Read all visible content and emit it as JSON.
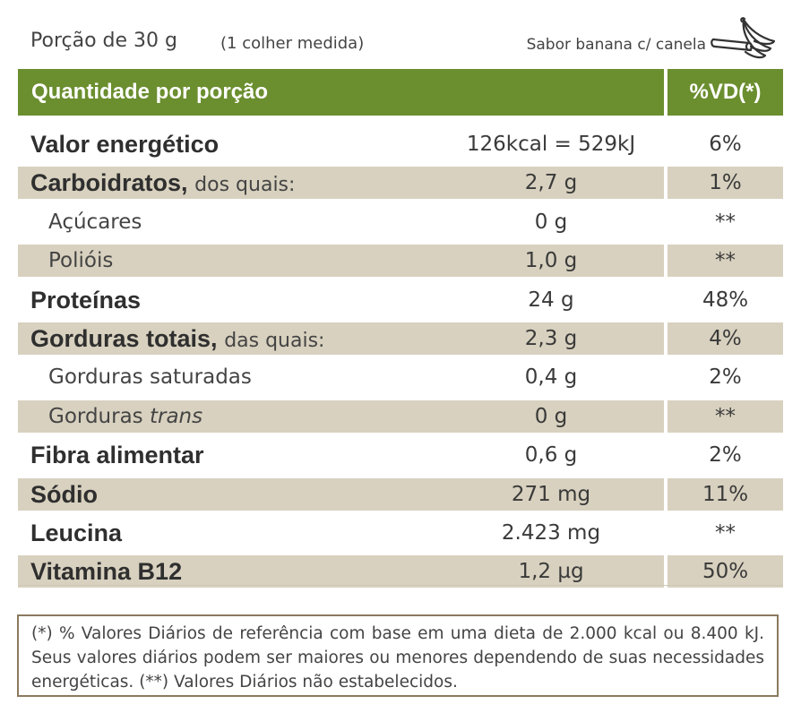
{
  "header": {
    "portion": "Porção de 30 g",
    "measure": "(1 colher medida)",
    "flavor": "Sabor banana c/ canela",
    "icon": "banana-cinnamon-icon"
  },
  "table": {
    "header_label": "Quantidade por porção",
    "header_vd": "%VD(*)",
    "colors": {
      "header_bg": "#6b8e2f",
      "row_shade": "#d8d1bf"
    },
    "rows": [
      {
        "name": "Valor energético",
        "qualifier": "",
        "quantity": "126kcal = 529kJ",
        "vd": "6%"
      },
      {
        "name": "Carboidratos,",
        "qualifier": "dos quais:",
        "quantity": "2,7 g",
        "vd": "1%"
      },
      {
        "name": "Açúcares",
        "qualifier": "",
        "quantity": "0 g",
        "vd": "**"
      },
      {
        "name": "Polióis",
        "qualifier": "",
        "quantity": "1,0 g",
        "vd": "**"
      },
      {
        "name": "Proteínas",
        "qualifier": "",
        "quantity": "24 g",
        "vd": "48%"
      },
      {
        "name": "Gorduras totais,",
        "qualifier": "das quais:",
        "quantity": "2,3 g",
        "vd": "4%"
      },
      {
        "name": "Gorduras saturadas",
        "qualifier": "",
        "quantity": "0,4 g",
        "vd": "2%"
      },
      {
        "name": "Gorduras",
        "qualifier": "trans",
        "quantity": "0 g",
        "vd": "**"
      },
      {
        "name": "Fibra alimentar",
        "qualifier": "",
        "quantity": "0,6 g",
        "vd": "2%"
      },
      {
        "name": "Sódio",
        "qualifier": "",
        "quantity": "271 mg",
        "vd": "11%"
      },
      {
        "name": "Leucina",
        "qualifier": "",
        "quantity": "2.423 mg",
        "vd": "**"
      },
      {
        "name": "Vitamina B12",
        "qualifier": "",
        "quantity": "1,2 µg",
        "vd": "50%"
      }
    ]
  },
  "footnote": "(*) % Valores Diários de referência com base em uma dieta de 2.000 kcal ou 8.400 kJ. Seus valores diários podem ser maiores ou menores dependendo de suas necessidades energéticas. (**) Valores Diários não estabelecidos."
}
